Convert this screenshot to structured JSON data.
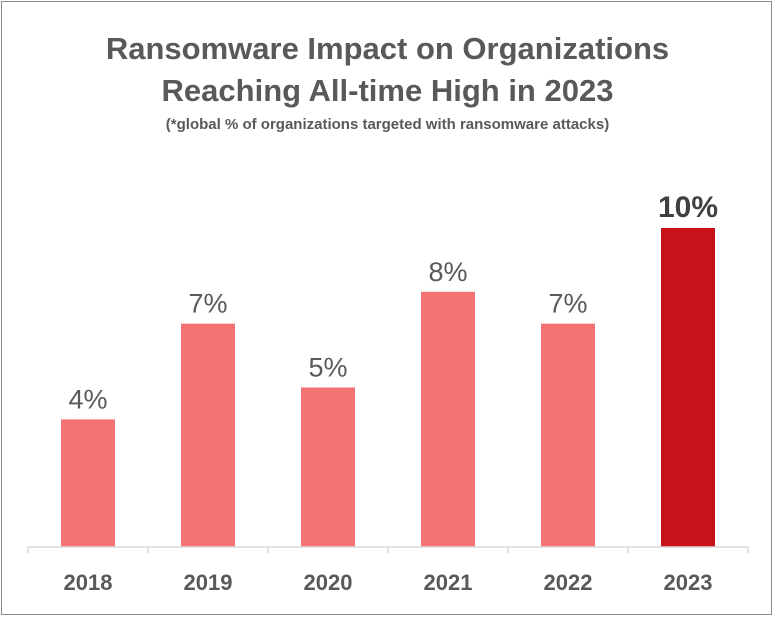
{
  "chart_data": {
    "type": "bar",
    "title_line1": "Ransomware Impact on Organizations",
    "title_line2": "Reaching All-time High in 2023",
    "subtitle": "(*global % of organizations targeted with ransomware attacks)",
    "categories": [
      "2018",
      "2019",
      "2020",
      "2021",
      "2022",
      "2023"
    ],
    "values": [
      4,
      7,
      5,
      8,
      7,
      10
    ],
    "data_labels": [
      "4%",
      "7%",
      "5%",
      "8%",
      "7%",
      "10%"
    ],
    "highlight_index": 5,
    "ylim": [
      0,
      10
    ],
    "grid": false,
    "colors": {
      "bar": "#f47174",
      "highlight": "#c9111a",
      "label_text": "#595959",
      "highlight_label_text": "#404040",
      "axis": "#d9d9d9"
    }
  }
}
